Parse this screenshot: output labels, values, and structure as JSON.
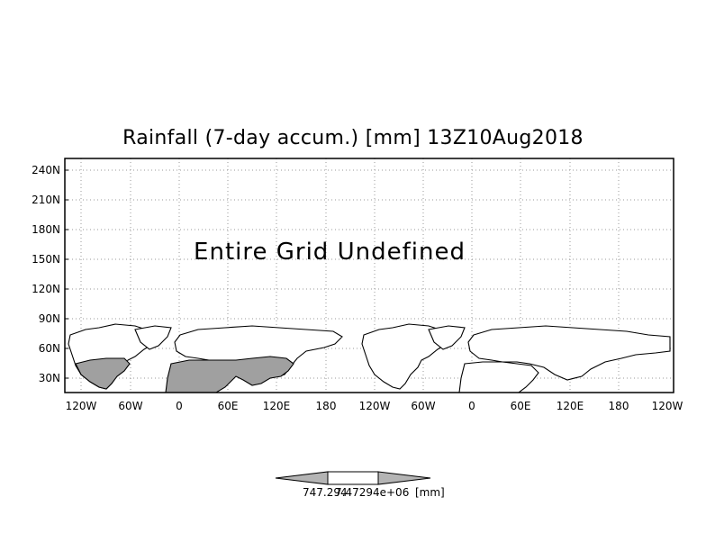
{
  "title": "Rainfall (7-day accum.) [mm] 13Z10Aug2018",
  "message": "Entire Grid Undefined",
  "lat_labels": [
    "240N",
    "210N",
    "180N",
    "150N",
    "120N",
    "90N",
    "60N",
    "30N"
  ],
  "lon_labels": [
    "120W",
    "60W",
    "0",
    "60E",
    "120E",
    "180",
    "120W",
    "60W",
    "0",
    "60E",
    "120E",
    "180",
    "120W"
  ],
  "colorbar": {
    "min_label": "747.294",
    "max_label": "7.47294e+06",
    "unit_label": "[mm]"
  },
  "colors": {
    "land_fill": "#a0a0a0",
    "frame": "#000000",
    "grid": "#9a9a9a"
  }
}
